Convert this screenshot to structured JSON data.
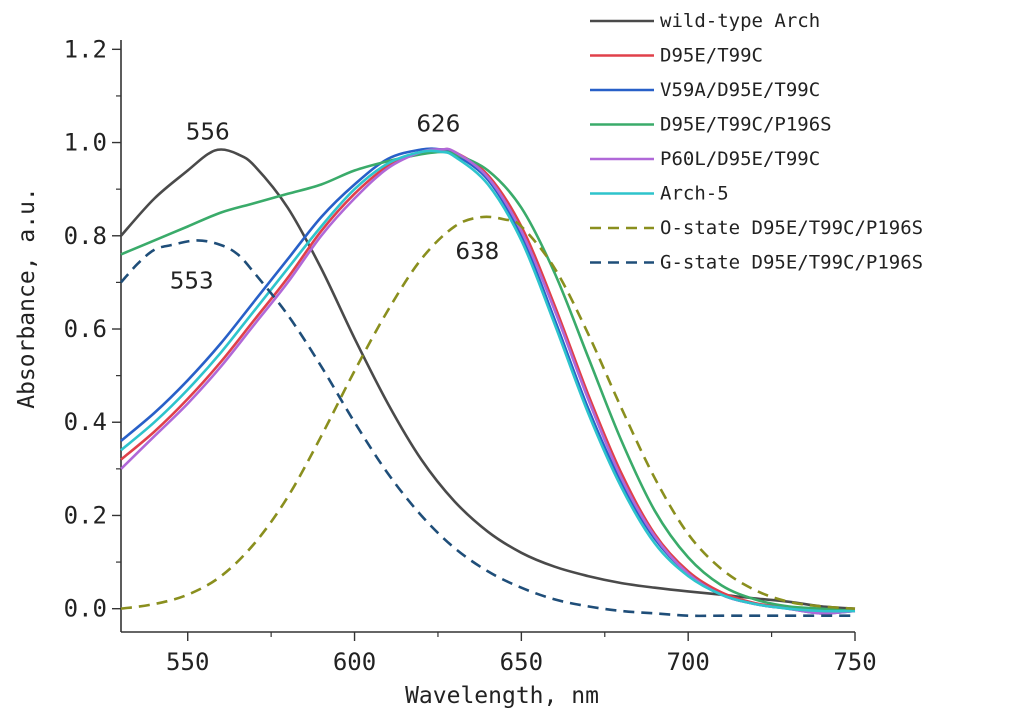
{
  "chart_data": {
    "type": "line",
    "title": "",
    "xlabel": "Wavelength, nm",
    "ylabel": "Absorbance, a.u.",
    "xlim": [
      530,
      750
    ],
    "ylim": [
      -0.05,
      1.22
    ],
    "xticks": [
      550,
      600,
      650,
      700,
      750
    ],
    "xtick_labels": [
      "550",
      "600",
      "650",
      "700",
      "750"
    ],
    "yticks": [
      0.0,
      0.2,
      0.4,
      0.6,
      0.8,
      1.0,
      1.2
    ],
    "ytick_labels": [
      "0.0",
      "0.2",
      "0.4",
      "0.6",
      "0.8",
      "1.0",
      "1.2"
    ],
    "legend_position": "top-right",
    "grid": false,
    "series": [
      {
        "name": "wild-type Arch",
        "color": "#4a4a4a",
        "dash": "solid",
        "x": [
          530,
          540,
          550,
          556,
          560,
          565,
          570,
          580,
          590,
          600,
          610,
          620,
          630,
          640,
          650,
          660,
          670,
          680,
          690,
          700,
          710,
          720,
          730,
          740,
          750
        ],
        "y": [
          0.8,
          0.88,
          0.94,
          0.975,
          0.985,
          0.975,
          0.95,
          0.86,
          0.73,
          0.58,
          0.44,
          0.32,
          0.23,
          0.165,
          0.12,
          0.09,
          0.07,
          0.055,
          0.045,
          0.037,
          0.03,
          0.022,
          0.015,
          0.005,
          0.0
        ]
      },
      {
        "name": "D95E/T99C",
        "color": "#e0404a",
        "dash": "solid",
        "x": [
          530,
          540,
          550,
          560,
          570,
          580,
          590,
          600,
          610,
          620,
          626,
          630,
          640,
          650,
          660,
          670,
          680,
          690,
          700,
          710,
          720,
          730,
          740,
          750
        ],
        "y": [
          0.32,
          0.38,
          0.45,
          0.53,
          0.62,
          0.71,
          0.81,
          0.89,
          0.95,
          0.98,
          0.985,
          0.98,
          0.93,
          0.82,
          0.65,
          0.46,
          0.29,
          0.16,
          0.08,
          0.035,
          0.012,
          0.002,
          -0.005,
          -0.005
        ]
      },
      {
        "name": "V59A/D95E/T99C",
        "color": "#2860c8",
        "dash": "solid",
        "x": [
          530,
          540,
          550,
          560,
          570,
          580,
          590,
          600,
          610,
          620,
          626,
          630,
          640,
          650,
          660,
          670,
          680,
          690,
          700,
          710,
          720,
          730,
          740,
          750
        ],
        "y": [
          0.36,
          0.42,
          0.49,
          0.57,
          0.66,
          0.75,
          0.84,
          0.91,
          0.965,
          0.985,
          0.985,
          0.975,
          0.92,
          0.8,
          0.62,
          0.43,
          0.27,
          0.15,
          0.075,
          0.03,
          0.01,
          0.0,
          -0.01,
          -0.005
        ]
      },
      {
        "name": "D95E/T99C/P196S",
        "color": "#3aab6a",
        "dash": "solid",
        "x": [
          530,
          540,
          550,
          560,
          570,
          580,
          590,
          600,
          610,
          620,
          626,
          630,
          640,
          650,
          660,
          670,
          680,
          690,
          700,
          710,
          720,
          730,
          740,
          750
        ],
        "y": [
          0.76,
          0.79,
          0.82,
          0.85,
          0.87,
          0.89,
          0.91,
          0.94,
          0.96,
          0.975,
          0.98,
          0.975,
          0.94,
          0.86,
          0.72,
          0.54,
          0.36,
          0.21,
          0.11,
          0.05,
          0.02,
          0.005,
          0.0,
          -0.005
        ]
      },
      {
        "name": "P60L/D95E/T99C",
        "color": "#b068d8",
        "dash": "solid",
        "x": [
          530,
          540,
          550,
          560,
          570,
          580,
          590,
          600,
          610,
          620,
          626,
          630,
          640,
          650,
          660,
          670,
          680,
          690,
          700,
          710,
          720,
          730,
          740,
          750
        ],
        "y": [
          0.3,
          0.37,
          0.44,
          0.52,
          0.61,
          0.7,
          0.8,
          0.88,
          0.945,
          0.98,
          0.985,
          0.98,
          0.925,
          0.81,
          0.64,
          0.45,
          0.28,
          0.155,
          0.075,
          0.03,
          0.01,
          0.0,
          -0.01,
          -0.005
        ]
      },
      {
        "name": "Arch-5",
        "color": "#2ec4cc",
        "dash": "solid",
        "x": [
          530,
          540,
          550,
          560,
          570,
          580,
          590,
          600,
          610,
          620,
          626,
          630,
          640,
          650,
          660,
          670,
          680,
          690,
          700,
          710,
          720,
          730,
          740,
          750
        ],
        "y": [
          0.34,
          0.4,
          0.47,
          0.55,
          0.64,
          0.73,
          0.82,
          0.9,
          0.955,
          0.98,
          0.98,
          0.97,
          0.91,
          0.79,
          0.61,
          0.42,
          0.26,
          0.14,
          0.07,
          0.03,
          0.01,
          0.0,
          -0.005,
          -0.005
        ]
      },
      {
        "name": "O-state D95E/T99C/P196S",
        "color": "#8a8f1e",
        "dash": "dashed",
        "x": [
          530,
          540,
          550,
          560,
          570,
          580,
          590,
          600,
          610,
          620,
          630,
          638,
          645,
          650,
          660,
          670,
          680,
          690,
          700,
          710,
          720,
          730,
          740,
          750
        ],
        "y": [
          0.0,
          0.01,
          0.03,
          0.07,
          0.14,
          0.24,
          0.37,
          0.51,
          0.64,
          0.75,
          0.82,
          0.84,
          0.835,
          0.82,
          0.73,
          0.59,
          0.43,
          0.28,
          0.16,
          0.085,
          0.04,
          0.015,
          0.005,
          0.0
        ]
      },
      {
        "name": "G-state D95E/T99C/P196S",
        "color": "#1f4e79",
        "dash": "dashed",
        "x": [
          530,
          535,
          540,
          545,
          553,
          560,
          565,
          570,
          580,
          590,
          600,
          610,
          620,
          630,
          640,
          650,
          660,
          670,
          680,
          690,
          700,
          710,
          720,
          730,
          740,
          750
        ],
        "y": [
          0.7,
          0.74,
          0.77,
          0.78,
          0.79,
          0.78,
          0.76,
          0.72,
          0.63,
          0.52,
          0.4,
          0.29,
          0.2,
          0.13,
          0.08,
          0.045,
          0.02,
          0.005,
          -0.005,
          -0.01,
          -0.015,
          -0.015,
          -0.015,
          -0.015,
          -0.015,
          -0.015
        ]
      }
    ],
    "annotations": [
      {
        "text": "556",
        "x": 556,
        "y": 0.985
      },
      {
        "text": "626",
        "x": 626,
        "y": 0.985
      },
      {
        "text": "638",
        "x": 638,
        "y": 0.84
      },
      {
        "text": "553",
        "x": 553,
        "y": 0.79
      }
    ]
  }
}
